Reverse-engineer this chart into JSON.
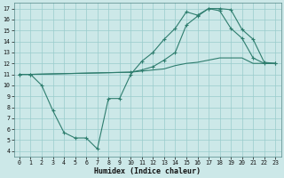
{
  "bg_color": "#cce8e8",
  "grid_color": "#99cccc",
  "line_color": "#2e7d6e",
  "xlabel": "Humidex (Indice chaleur)",
  "xlim": [
    -0.5,
    23.5
  ],
  "ylim": [
    3.5,
    17.5
  ],
  "xticks": [
    0,
    1,
    2,
    3,
    4,
    5,
    6,
    7,
    8,
    9,
    10,
    11,
    12,
    13,
    14,
    15,
    16,
    17,
    18,
    19,
    20,
    21,
    22,
    23
  ],
  "yticks": [
    4,
    5,
    6,
    7,
    8,
    9,
    10,
    11,
    12,
    13,
    14,
    15,
    16,
    17
  ],
  "line1_x": [
    0,
    1,
    2,
    3,
    4,
    5,
    6,
    7,
    8,
    9,
    10,
    11,
    12,
    13,
    14,
    15,
    16,
    17,
    18,
    19,
    20,
    21,
    22,
    23
  ],
  "line1_y": [
    11,
    11,
    10,
    7.7,
    5.7,
    5.2,
    5.2,
    4.2,
    8.8,
    8.8,
    11.0,
    12.2,
    13.0,
    14.2,
    15.2,
    16.7,
    16.4,
    17.0,
    16.8,
    15.2,
    14.3,
    12.5,
    12.0,
    12.0
  ],
  "line2_x": [
    0,
    1,
    10,
    11,
    12,
    13,
    14,
    15,
    16,
    17,
    18,
    19,
    20,
    21,
    22,
    23
  ],
  "line2_y": [
    11,
    11,
    11.2,
    11.4,
    11.7,
    12.3,
    13.0,
    15.5,
    16.3,
    17.0,
    17.0,
    16.9,
    15.1,
    14.2,
    12.1,
    12.0
  ],
  "line3_x": [
    0,
    1,
    10,
    11,
    12,
    13,
    14,
    15,
    16,
    17,
    18,
    19,
    20,
    21,
    22,
    23
  ],
  "line3_y": [
    11,
    11,
    11.2,
    11.3,
    11.4,
    11.5,
    11.8,
    12.0,
    12.1,
    12.3,
    12.5,
    12.5,
    12.5,
    12.0,
    12.0,
    12.0
  ]
}
